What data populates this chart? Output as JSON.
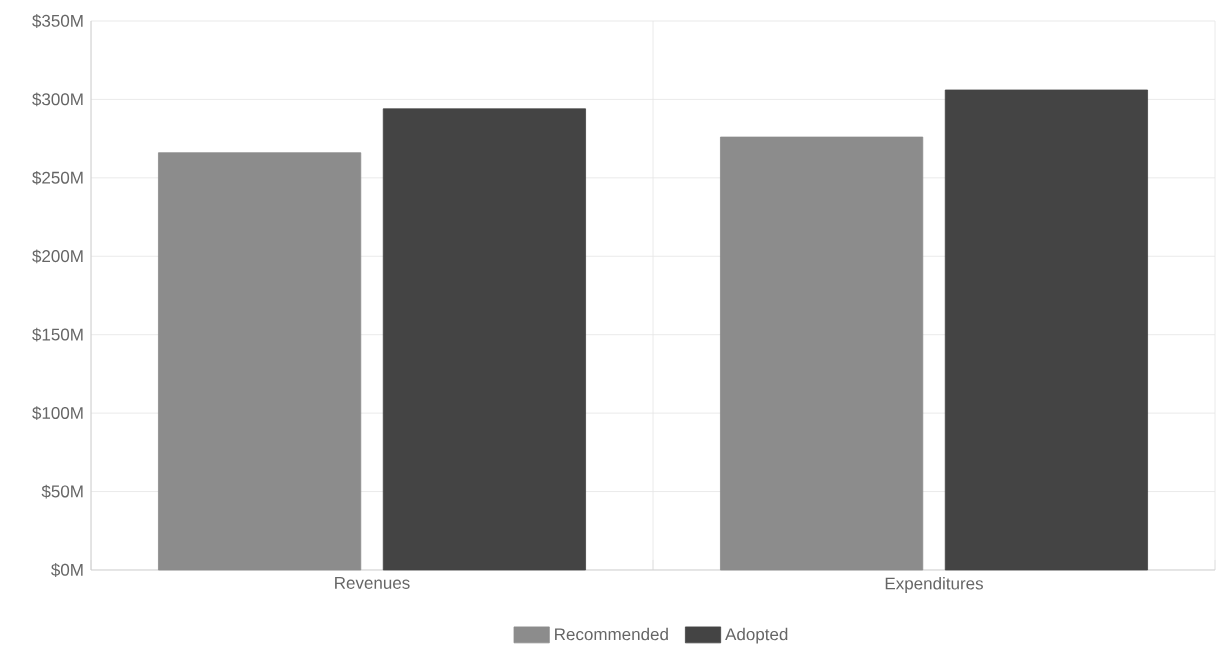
{
  "chart_data": {
    "type": "bar",
    "categories": [
      "Revenues",
      "Expenditures"
    ],
    "series": [
      {
        "name": "Recommended",
        "color": "#8c8c8c",
        "values": [
          266,
          276
        ]
      },
      {
        "name": "Adopted",
        "color": "#444444",
        "values": [
          294,
          306
        ]
      }
    ],
    "ylim": [
      0,
      350
    ],
    "yticks": [
      {
        "value": 0,
        "label": "$0M"
      },
      {
        "value": 50,
        "label": "$50M"
      },
      {
        "value": 100,
        "label": "$100M"
      },
      {
        "value": 150,
        "label": "$150M"
      },
      {
        "value": 200,
        "label": "$200M"
      },
      {
        "value": 250,
        "label": "$250M"
      },
      {
        "value": 300,
        "label": "$300M"
      },
      {
        "value": 350,
        "label": "$350M"
      }
    ],
    "grid": true,
    "legend": "bottom"
  }
}
